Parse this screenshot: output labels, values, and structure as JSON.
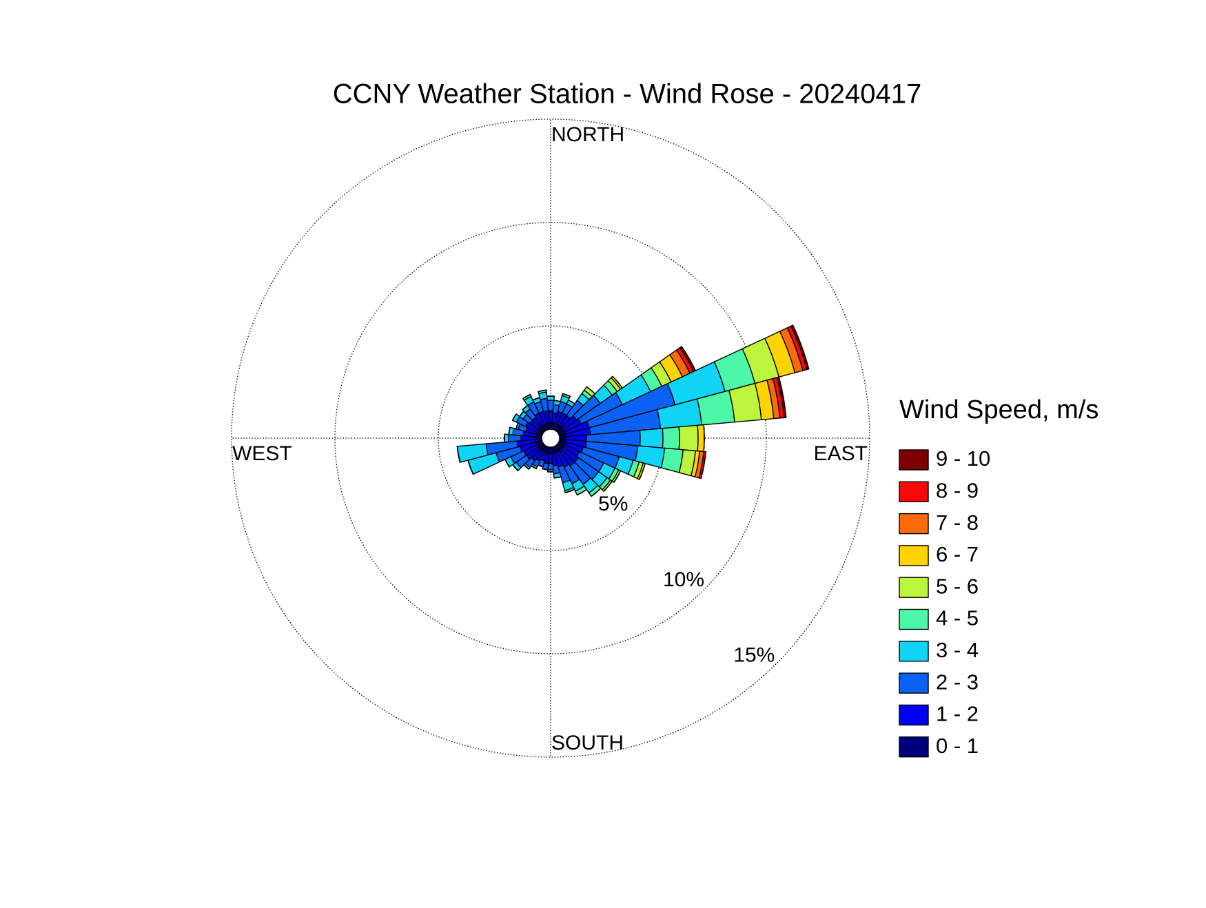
{
  "chart_data": {
    "type": "windrose",
    "title": "CCNY Weather Station - Wind Rose - 20240417",
    "directions": [
      0,
      10,
      20,
      30,
      40,
      50,
      60,
      70,
      80,
      90,
      100,
      110,
      120,
      130,
      140,
      150,
      160,
      170,
      180,
      190,
      200,
      210,
      220,
      230,
      240,
      250,
      260,
      270,
      280,
      290,
      300,
      310,
      320,
      330,
      340,
      350
    ],
    "sector_width": 10,
    "compass_labels": [
      {
        "angle": 0,
        "label": "NORTH"
      },
      {
        "angle": 90,
        "label": "EAST"
      },
      {
        "angle": 180,
        "label": "SOUTH"
      },
      {
        "angle": 270,
        "label": "WEST"
      }
    ],
    "rlim": [
      0,
      15
    ],
    "rticks": [
      {
        "value": 5,
        "label": "5%"
      },
      {
        "value": 10,
        "label": "10%"
      },
      {
        "value": 15,
        "label": "15%"
      }
    ],
    "grid": true,
    "legend_title": "Wind Speed, m/s",
    "legend_position": "right",
    "series": [
      {
        "name": "0 - 1",
        "color": "#00007f",
        "values": [
          0.3,
          0.3,
          0.3,
          0.3,
          0.3,
          0.3,
          0.3,
          0.3,
          0.3,
          0.3,
          0.3,
          0.3,
          0.3,
          0.3,
          0.3,
          0.3,
          0.3,
          0.3,
          0.3,
          0.3,
          0.3,
          0.3,
          0.3,
          0.3,
          0.3,
          0.3,
          0.3,
          0.3,
          0.3,
          0.3,
          0.3,
          0.3,
          0.3,
          0.3,
          0.3,
          0.3
        ]
      },
      {
        "name": "1 - 2",
        "color": "#0000f5",
        "values": [
          0.6,
          0.5,
          0.6,
          0.6,
          0.6,
          0.8,
          0.9,
          1.2,
          1.2,
          1.0,
          1.0,
          0.9,
          0.8,
          0.9,
          0.9,
          0.8,
          0.7,
          0.6,
          0.5,
          0.5,
          0.4,
          0.5,
          0.6,
          0.7,
          0.7,
          0.8,
          0.9,
          0.7,
          0.6,
          0.5,
          0.6,
          0.5,
          0.5,
          0.6,
          0.6,
          0.6
        ]
      },
      {
        "name": "2 - 3",
        "color": "#0a62f5",
        "values": [
          0.5,
          0.4,
          0.5,
          0.5,
          0.9,
          1.4,
          2.2,
          4.3,
          3.4,
          2.6,
          2.5,
          1.8,
          1.3,
          1.2,
          1.1,
          0.9,
          0.8,
          0.4,
          0.3,
          0.3,
          0.3,
          0.3,
          0.4,
          0.6,
          0.7,
          1.2,
          1.5,
          0.6,
          0.5,
          0.4,
          0.5,
          0.4,
          0.5,
          0.6,
          0.5,
          0.6
        ]
      },
      {
        "name": "3 - 4",
        "color": "#10d4f5",
        "values": [
          0.2,
          0.2,
          0.3,
          0.2,
          0.4,
          0.7,
          1.5,
          2.5,
          2.0,
          1.1,
          1.3,
          0.7,
          0.6,
          0.5,
          0.5,
          0.4,
          0.4,
          0.2,
          0.1,
          0,
          0,
          0.1,
          0.1,
          0.2,
          0.3,
          1.4,
          1.4,
          0.2,
          0.2,
          0.1,
          0.2,
          0.2,
          0.2,
          0.3,
          0.2,
          0.3
        ]
      },
      {
        "name": "4 - 5",
        "color": "#4cf7a8",
        "values": [
          0,
          0,
          0.1,
          0,
          0.2,
          0.3,
          0.6,
          1.5,
          1.6,
          0.8,
          0.9,
          0.3,
          0.2,
          0.2,
          0.2,
          0.2,
          0.1,
          0,
          0,
          0,
          0,
          0,
          0,
          0,
          0,
          0,
          0,
          0,
          0,
          0,
          0,
          0,
          0,
          0.1,
          0,
          0.1
        ]
      },
      {
        "name": "5 - 6",
        "color": "#bdf53c",
        "values": [
          0,
          0,
          0,
          0,
          0.2,
          0.2,
          0.5,
          1.2,
          1.3,
          0.9,
          0.6,
          0.2,
          0.1,
          0.1,
          0,
          0,
          0,
          0,
          0,
          0,
          0,
          0,
          0,
          0,
          0,
          0,
          0,
          0,
          0,
          0,
          0,
          0,
          0,
          0,
          0,
          0
        ]
      },
      {
        "name": "6 - 7",
        "color": "#fdd400",
        "values": [
          0,
          0,
          0,
          0,
          0,
          0.1,
          0.6,
          0.8,
          0.6,
          0.3,
          0.2,
          0.1,
          0,
          0,
          0,
          0,
          0,
          0,
          0,
          0,
          0,
          0,
          0,
          0,
          0,
          0,
          0,
          0,
          0,
          0,
          0,
          0,
          0,
          0,
          0,
          0
        ]
      },
      {
        "name": "7 - 8",
        "color": "#fd6a0a",
        "values": [
          0,
          0,
          0,
          0,
          0,
          0,
          0.4,
          0.4,
          0.3,
          0,
          0.2,
          0,
          0,
          0,
          0,
          0,
          0,
          0,
          0,
          0,
          0,
          0,
          0,
          0,
          0,
          0,
          0,
          0,
          0,
          0,
          0,
          0,
          0,
          0,
          0,
          0
        ]
      },
      {
        "name": "8 - 9",
        "color": "#f50a0a",
        "values": [
          0,
          0,
          0,
          0,
          0,
          0,
          0.2,
          0.2,
          0.2,
          0,
          0.1,
          0,
          0,
          0,
          0,
          0,
          0,
          0,
          0,
          0,
          0,
          0,
          0,
          0,
          0,
          0,
          0,
          0,
          0,
          0,
          0,
          0,
          0,
          0,
          0,
          0
        ]
      },
      {
        "name": "9 - 10",
        "color": "#7f0000",
        "values": [
          0,
          0,
          0,
          0,
          0,
          0,
          0.1,
          0.1,
          0.1,
          0,
          0,
          0,
          0,
          0,
          0,
          0,
          0,
          0,
          0,
          0,
          0,
          0,
          0,
          0,
          0,
          0,
          0,
          0,
          0,
          0,
          0,
          0,
          0,
          0,
          0,
          0
        ]
      }
    ]
  }
}
